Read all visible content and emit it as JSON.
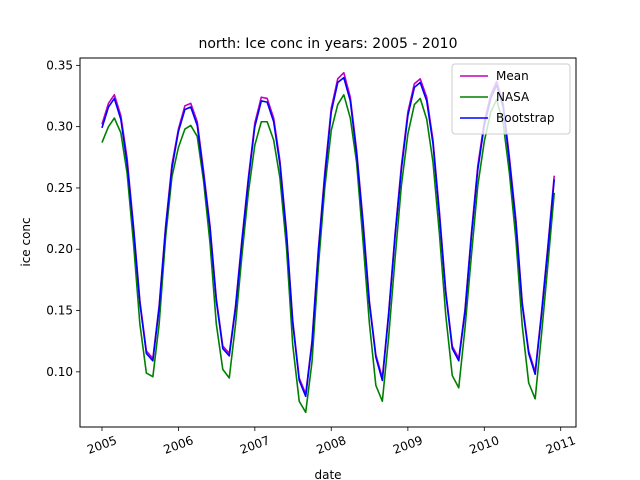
{
  "chart_data": {
    "type": "line",
    "title": "north: Ice conc in years: 2005 - 2010",
    "xlabel": "date",
    "ylabel": "ice conc",
    "x_unit": "date",
    "xlim": [
      "2004-09-18",
      "2011-03-15"
    ],
    "ylim": [
      0.055,
      0.356
    ],
    "x_ticks": [
      {
        "date": "2005-01-01",
        "label": "2005"
      },
      {
        "date": "2006-01-01",
        "label": "2006"
      },
      {
        "date": "2007-01-01",
        "label": "2007"
      },
      {
        "date": "2008-01-01",
        "label": "2008"
      },
      {
        "date": "2009-01-01",
        "label": "2009"
      },
      {
        "date": "2010-01-01",
        "label": "2010"
      },
      {
        "date": "2011-01-01",
        "label": "2011"
      }
    ],
    "y_ticks": [
      {
        "value": 0.1,
        "label": "0.10"
      },
      {
        "value": 0.15,
        "label": "0.15"
      },
      {
        "value": 0.2,
        "label": "0.20"
      },
      {
        "value": 0.25,
        "label": "0.25"
      },
      {
        "value": 0.3,
        "label": "0.30"
      },
      {
        "value": 0.35,
        "label": "0.35"
      }
    ],
    "x": [
      "2005-01-01",
      "2005-02-01",
      "2005-03-01",
      "2005-04-01",
      "2005-05-01",
      "2005-06-01",
      "2005-07-01",
      "2005-08-01",
      "2005-09-01",
      "2005-10-01",
      "2005-11-01",
      "2005-12-01",
      "2006-01-01",
      "2006-02-01",
      "2006-03-01",
      "2006-04-01",
      "2006-05-01",
      "2006-06-01",
      "2006-07-01",
      "2006-08-01",
      "2006-09-01",
      "2006-10-01",
      "2006-11-01",
      "2006-12-01",
      "2007-01-01",
      "2007-02-01",
      "2007-03-01",
      "2007-04-01",
      "2007-05-01",
      "2007-06-01",
      "2007-07-01",
      "2007-08-01",
      "2007-09-01",
      "2007-10-01",
      "2007-11-01",
      "2007-12-01",
      "2008-01-01",
      "2008-02-01",
      "2008-03-01",
      "2008-04-01",
      "2008-05-01",
      "2008-06-01",
      "2008-07-01",
      "2008-08-01",
      "2008-09-01",
      "2008-10-01",
      "2008-11-01",
      "2008-12-01",
      "2009-01-01",
      "2009-02-01",
      "2009-03-01",
      "2009-04-01",
      "2009-05-01",
      "2009-06-01",
      "2009-07-01",
      "2009-08-01",
      "2009-09-01",
      "2009-10-01",
      "2009-11-01",
      "2009-12-01",
      "2010-01-01",
      "2010-02-01",
      "2010-03-01",
      "2010-04-01",
      "2010-05-01",
      "2010-06-01",
      "2010-07-01",
      "2010-08-01",
      "2010-09-01",
      "2010-10-01",
      "2010-11-01",
      "2010-12-01"
    ],
    "series": [
      {
        "name": "Mean",
        "color": "#bf00bf",
        "values": [
          0.302,
          0.319,
          0.326,
          0.309,
          0.274,
          0.218,
          0.158,
          0.117,
          0.111,
          0.154,
          0.219,
          0.269,
          0.298,
          0.317,
          0.319,
          0.304,
          0.264,
          0.219,
          0.16,
          0.121,
          0.115,
          0.154,
          0.209,
          0.258,
          0.303,
          0.324,
          0.323,
          0.307,
          0.272,
          0.215,
          0.142,
          0.095,
          0.082,
          0.125,
          0.201,
          0.262,
          0.315,
          0.339,
          0.344,
          0.324,
          0.281,
          0.223,
          0.158,
          0.114,
          0.095,
          0.148,
          0.213,
          0.268,
          0.312,
          0.335,
          0.339,
          0.324,
          0.289,
          0.23,
          0.166,
          0.121,
          0.111,
          0.151,
          0.214,
          0.268,
          0.304,
          0.326,
          0.337,
          0.319,
          0.275,
          0.224,
          0.157,
          0.117,
          0.1,
          0.148,
          0.203,
          0.26
        ]
      },
      {
        "name": "NASA",
        "color": "#008000",
        "values": [
          0.287,
          0.3,
          0.307,
          0.295,
          0.262,
          0.204,
          0.139,
          0.099,
          0.096,
          0.139,
          0.21,
          0.259,
          0.283,
          0.298,
          0.301,
          0.292,
          0.256,
          0.205,
          0.139,
          0.102,
          0.095,
          0.139,
          0.196,
          0.246,
          0.285,
          0.304,
          0.304,
          0.289,
          0.258,
          0.202,
          0.122,
          0.076,
          0.067,
          0.108,
          0.187,
          0.25,
          0.297,
          0.318,
          0.326,
          0.307,
          0.271,
          0.206,
          0.14,
          0.089,
          0.076,
          0.128,
          0.193,
          0.252,
          0.294,
          0.318,
          0.323,
          0.306,
          0.271,
          0.212,
          0.146,
          0.097,
          0.087,
          0.136,
          0.196,
          0.252,
          0.288,
          0.312,
          0.322,
          0.303,
          0.262,
          0.208,
          0.138,
          0.091,
          0.078,
          0.13,
          0.188,
          0.246
        ]
      },
      {
        "name": "Bootstrap",
        "color": "#0000ff",
        "values": [
          0.299,
          0.316,
          0.323,
          0.306,
          0.27,
          0.216,
          0.156,
          0.115,
          0.109,
          0.152,
          0.217,
          0.266,
          0.296,
          0.314,
          0.316,
          0.301,
          0.261,
          0.217,
          0.158,
          0.119,
          0.113,
          0.152,
          0.207,
          0.256,
          0.3,
          0.321,
          0.32,
          0.304,
          0.269,
          0.213,
          0.14,
          0.093,
          0.08,
          0.123,
          0.199,
          0.259,
          0.312,
          0.336,
          0.34,
          0.321,
          0.278,
          0.22,
          0.156,
          0.112,
          0.093,
          0.146,
          0.211,
          0.265,
          0.309,
          0.332,
          0.336,
          0.321,
          0.286,
          0.227,
          0.164,
          0.119,
          0.109,
          0.149,
          0.212,
          0.265,
          0.301,
          0.323,
          0.334,
          0.316,
          0.272,
          0.221,
          0.155,
          0.115,
          0.098,
          0.146,
          0.201,
          0.257
        ]
      }
    ],
    "legend_position": "top-right",
    "grid": false
  }
}
